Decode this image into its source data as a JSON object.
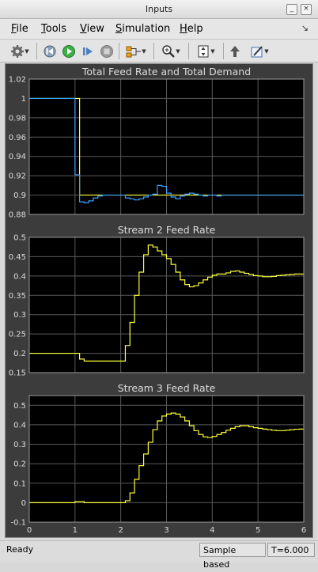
{
  "window": {
    "title": "Inputs"
  },
  "menu": {
    "items": [
      {
        "label": "File",
        "mnemonic": "F"
      },
      {
        "label": "Tools",
        "mnemonic": "T"
      },
      {
        "label": "View",
        "mnemonic": "V"
      },
      {
        "label": "Simulation",
        "mnemonic": "S"
      },
      {
        "label": "Help",
        "mnemonic": "H"
      }
    ]
  },
  "toolbar": {
    "icons": [
      "gear-icon",
      "step-back-icon",
      "run-icon",
      "step-forward-icon",
      "stop-icon",
      "signal-select-icon",
      "zoom-icon",
      "fit-axes-icon",
      "highlight-icon",
      "style-icon"
    ]
  },
  "status": {
    "ready": "Ready",
    "mode": "Sample based",
    "time": "T=6.000"
  },
  "colors": {
    "series_yellow": "#ffff3a",
    "series_blue": "#3aa0ff",
    "axes_bg": "#000000",
    "figure_bg": "#3c3c3c",
    "grid": "#5a5a5a",
    "text": "#dcdcdc"
  },
  "chart_data": [
    {
      "type": "line",
      "title": "Total Feed Rate and Total Demand",
      "xlim": [
        0,
        6
      ],
      "ylim": [
        0.88,
        1.02
      ],
      "yticks": [
        0.88,
        0.9,
        0.92,
        0.94,
        0.96,
        0.98,
        1,
        1.02
      ],
      "ytick_labels": [
        "0.88",
        "0.9",
        "0.92",
        "0.94",
        "0.96",
        "0.98",
        "1",
        "1.02"
      ],
      "xticks": [
        0,
        1,
        2,
        3,
        4,
        5,
        6
      ],
      "grid": true,
      "step": true,
      "series": [
        {
          "color": "#ffff3a",
          "x": [
            0,
            1,
            1.1,
            2.0,
            6.0
          ],
          "y": [
            1.0,
            1.0,
            0.9,
            0.9,
            0.9
          ]
        },
        {
          "color": "#3aa0ff",
          "x": [
            0,
            1,
            1.0,
            1.1,
            1.2,
            1.3,
            1.4,
            1.5,
            1.6,
            2.0,
            2.1,
            2.2,
            2.3,
            2.4,
            2.5,
            2.6,
            2.7,
            2.8,
            2.9,
            3.0,
            3.1,
            3.2,
            3.3,
            3.4,
            3.5,
            3.6,
            3.7,
            3.8,
            3.9,
            4.0,
            4.1,
            4.2,
            4.3,
            4.5,
            5.0,
            6.0
          ],
          "y": [
            1.0,
            1.0,
            0.921,
            0.893,
            0.892,
            0.894,
            0.897,
            0.899,
            0.9,
            0.9,
            0.897,
            0.896,
            0.895,
            0.896,
            0.898,
            0.9,
            0.901,
            0.91,
            0.909,
            0.902,
            0.898,
            0.896,
            0.899,
            0.901,
            0.902,
            0.901,
            0.9,
            0.899,
            0.9,
            0.9,
            0.899,
            0.9,
            0.9,
            0.9,
            0.9,
            0.9
          ]
        }
      ]
    },
    {
      "type": "line",
      "title": "Stream 2 Feed Rate",
      "xlim": [
        0,
        6
      ],
      "ylim": [
        0.15,
        0.5
      ],
      "yticks": [
        0.15,
        0.2,
        0.25,
        0.3,
        0.35,
        0.4,
        0.45,
        0.5
      ],
      "ytick_labels": [
        "0.15",
        "0.2",
        "0.25",
        "0.3",
        "0.35",
        "0.4",
        "0.45",
        "0.5"
      ],
      "xticks": [
        0,
        1,
        2,
        3,
        4,
        5,
        6
      ],
      "grid": true,
      "step": true,
      "series": [
        {
          "color": "#ffff3a",
          "x": [
            0,
            1.0,
            1.1,
            1.2,
            1.4,
            2.0,
            2.1,
            2.2,
            2.3,
            2.4,
            2.5,
            2.6,
            2.7,
            2.8,
            2.9,
            3.0,
            3.1,
            3.2,
            3.3,
            3.4,
            3.5,
            3.6,
            3.7,
            3.8,
            3.9,
            4.0,
            4.1,
            4.2,
            4.3,
            4.4,
            4.5,
            4.6,
            4.7,
            4.8,
            4.9,
            5.0,
            5.1,
            5.2,
            5.3,
            5.4,
            5.5,
            5.6,
            5.7,
            5.8,
            6.0
          ],
          "y": [
            0.2,
            0.2,
            0.185,
            0.18,
            0.18,
            0.18,
            0.22,
            0.28,
            0.35,
            0.41,
            0.455,
            0.48,
            0.475,
            0.465,
            0.455,
            0.445,
            0.43,
            0.41,
            0.39,
            0.378,
            0.372,
            0.375,
            0.382,
            0.39,
            0.397,
            0.402,
            0.405,
            0.405,
            0.408,
            0.412,
            0.413,
            0.41,
            0.407,
            0.404,
            0.401,
            0.4,
            0.398,
            0.398,
            0.399,
            0.401,
            0.402,
            0.403,
            0.404,
            0.405,
            0.405
          ]
        }
      ]
    },
    {
      "type": "line",
      "title": "Stream 3 Feed Rate",
      "xlim": [
        0,
        6
      ],
      "ylim": [
        -0.1,
        0.55
      ],
      "yticks": [
        -0.1,
        0,
        0.1,
        0.2,
        0.3,
        0.4,
        0.5
      ],
      "ytick_labels": [
        "-0.1",
        "0",
        "0.1",
        "0.2",
        "0.3",
        "0.4",
        "0.5"
      ],
      "xticks": [
        0,
        1,
        2,
        3,
        4,
        5,
        6
      ],
      "xtick_labels": [
        "0",
        "1",
        "2",
        "3",
        "4",
        "5",
        "6"
      ],
      "grid": true,
      "step": true,
      "series": [
        {
          "color": "#ffff3a",
          "x": [
            0,
            1.0,
            1.2,
            2.0,
            2.1,
            2.2,
            2.3,
            2.4,
            2.5,
            2.6,
            2.7,
            2.8,
            2.9,
            3.0,
            3.1,
            3.2,
            3.3,
            3.4,
            3.5,
            3.6,
            3.7,
            3.8,
            3.9,
            4.0,
            4.1,
            4.2,
            4.3,
            4.4,
            4.5,
            4.6,
            4.7,
            4.8,
            4.9,
            5.0,
            5.1,
            5.2,
            5.3,
            5.4,
            5.5,
            5.6,
            5.7,
            5.8,
            5.9,
            6.0
          ],
          "y": [
            0.0,
            0.005,
            0.0,
            0.0,
            0.01,
            0.05,
            0.12,
            0.19,
            0.25,
            0.31,
            0.375,
            0.42,
            0.445,
            0.455,
            0.46,
            0.455,
            0.44,
            0.42,
            0.395,
            0.37,
            0.35,
            0.338,
            0.335,
            0.34,
            0.35,
            0.36,
            0.372,
            0.382,
            0.39,
            0.395,
            0.395,
            0.39,
            0.385,
            0.382,
            0.378,
            0.375,
            0.372,
            0.37,
            0.37,
            0.372,
            0.375,
            0.377,
            0.378,
            0.38
          ]
        }
      ]
    }
  ]
}
